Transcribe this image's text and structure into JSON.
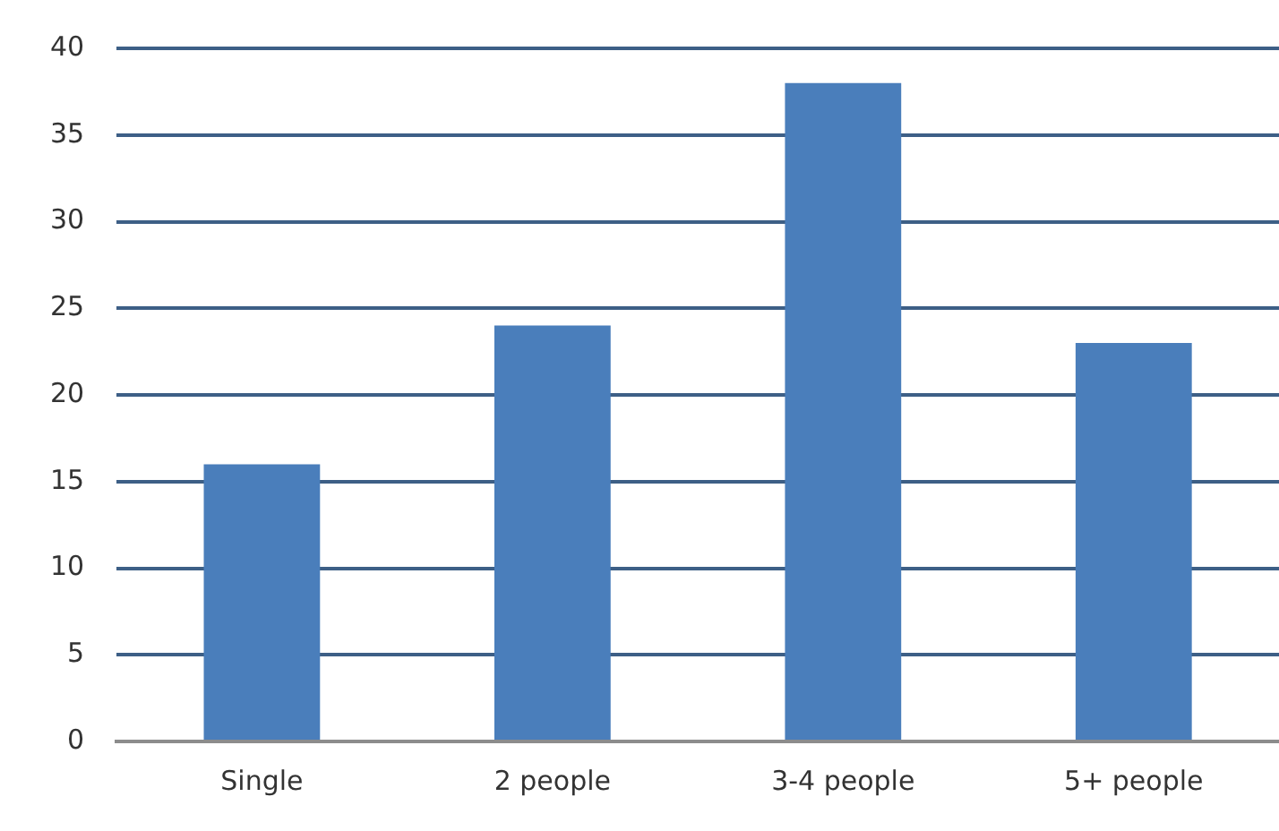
{
  "chart_data": {
    "type": "bar",
    "categories": [
      "Single",
      "2 people",
      "3-4 people",
      "5+ people"
    ],
    "values": [
      16,
      24,
      38,
      23
    ],
    "color": "#4a7ebb",
    "ylim": [
      0,
      40
    ],
    "yticks": [
      0,
      5,
      10,
      15,
      20,
      25,
      30,
      35,
      40
    ],
    "grid": "y"
  }
}
